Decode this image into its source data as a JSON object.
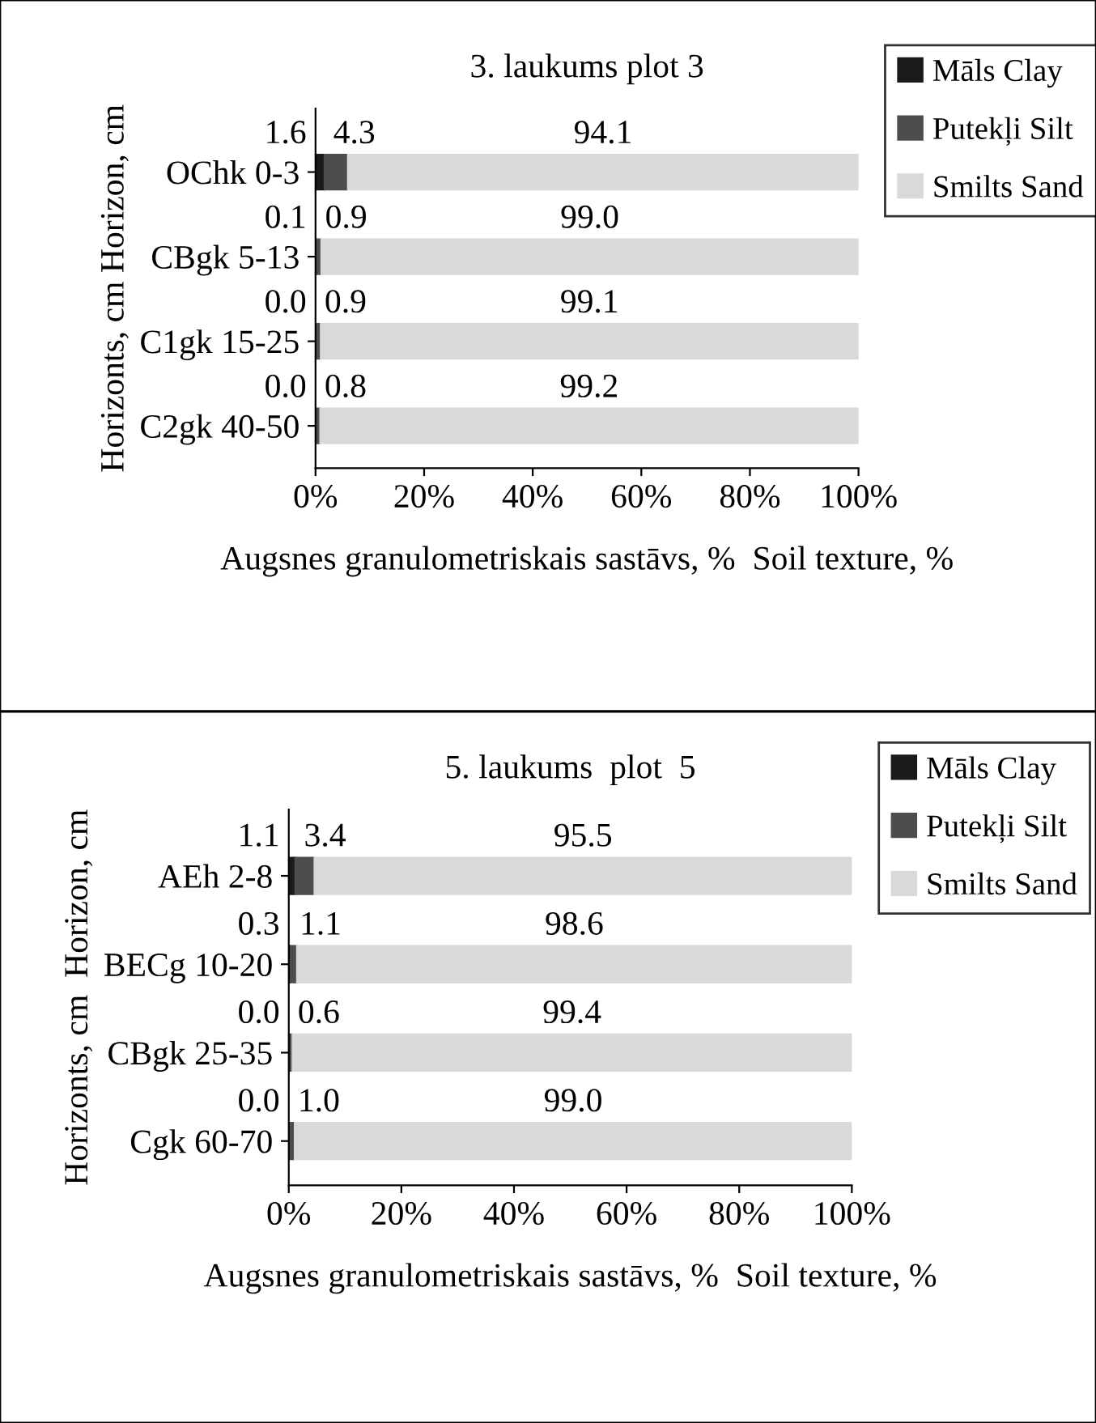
{
  "chart_data": [
    {
      "type": "bar",
      "orientation": "horizontal",
      "stacked": true,
      "title": "3. laukums plot 3",
      "xlabel": "Augsnes granulometriskais sastāvs, %  Soil texture, %",
      "ylabel": "Horizonts, cm Horizon, cm",
      "categories": [
        "OChk 0-3",
        "CBgk 5-13",
        "C1gk 15-25",
        "C2gk 40-50"
      ],
      "series": [
        {
          "name": "Māls Clay",
          "color": "#1a1a1a",
          "values": [
            1.6,
            0.1,
            0.0,
            0.0
          ],
          "value_labels": [
            "1.6",
            "0.1",
            "0.0",
            "0.0"
          ]
        },
        {
          "name": "Putekļi Silt",
          "color": "#4d4d4d",
          "values": [
            4.3,
            0.9,
            0.9,
            0.8
          ],
          "value_labels": [
            "4.3",
            "0.9",
            "0.9",
            "0.8"
          ]
        },
        {
          "name": "Smilts Sand",
          "color": "#d9d9d9",
          "values": [
            94.1,
            99.0,
            99.1,
            99.2
          ],
          "value_labels": [
            "94.1",
            "99.0",
            "99.1",
            "99.2"
          ]
        }
      ],
      "xlim": [
        0,
        100
      ],
      "xticks": [
        {
          "value": 0,
          "label": "0%"
        },
        {
          "value": 20,
          "label": "20%"
        },
        {
          "value": 40,
          "label": "40%"
        },
        {
          "value": 60,
          "label": "60%"
        },
        {
          "value": 80,
          "label": "80%"
        },
        {
          "value": 100,
          "label": "100%"
        }
      ],
      "legend": "top right"
    },
    {
      "type": "bar",
      "orientation": "horizontal",
      "stacked": true,
      "title": "5. laukums  plot  5",
      "xlabel": "Augsnes granulometriskais sastāvs, %  Soil texture, %",
      "ylabel": "Horizonts, cm  Horizon, cm",
      "categories": [
        "AEh 2-8",
        "BECg 10-20",
        "CBgk 25-35",
        "Cgk 60-70"
      ],
      "series": [
        {
          "name": "Māls Clay",
          "color": "#1a1a1a",
          "values": [
            1.1,
            0.3,
            0.0,
            0.0
          ],
          "value_labels": [
            "1.1",
            "0.3",
            "0.0",
            "0.0"
          ]
        },
        {
          "name": "Putekļi Silt",
          "color": "#4d4d4d",
          "values": [
            3.4,
            1.1,
            0.6,
            1.0
          ],
          "value_labels": [
            "3.4",
            "1.1",
            "0.6",
            "1.0"
          ]
        },
        {
          "name": "Smilts Sand",
          "color": "#d9d9d9",
          "values": [
            95.5,
            98.6,
            99.4,
            99.0
          ],
          "value_labels": [
            "95.5",
            "98.6",
            "99.4",
            "99.0"
          ]
        }
      ],
      "xlim": [
        0,
        100
      ],
      "xticks": [
        {
          "value": 0,
          "label": "0%"
        },
        {
          "value": 20,
          "label": "20%"
        },
        {
          "value": 40,
          "label": "40%"
        },
        {
          "value": 60,
          "label": "60%"
        },
        {
          "value": 80,
          "label": "80%"
        },
        {
          "value": 100,
          "label": "100%"
        }
      ],
      "legend": "top right"
    }
  ]
}
